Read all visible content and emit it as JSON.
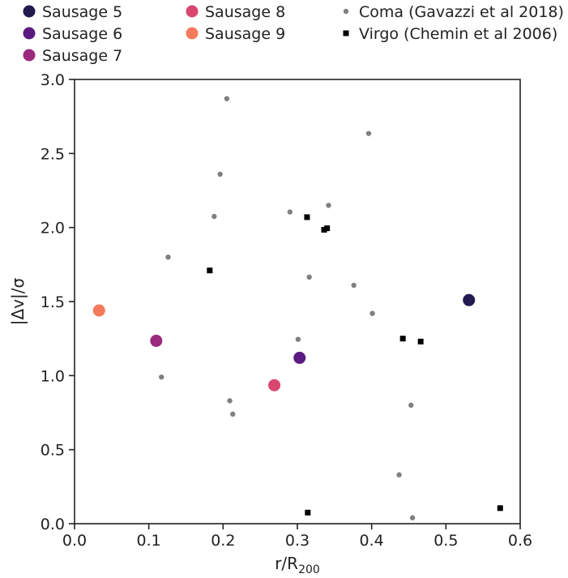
{
  "chart_data": {
    "type": "scatter",
    "xlabel": "r/R",
    "xlabel_sub": "200",
    "ylabel": "|Δv|/σ",
    "xlim": [
      0.0,
      0.6
    ],
    "ylim": [
      0.0,
      3.0
    ],
    "xticks": [
      "0.0",
      "0.1",
      "0.2",
      "0.3",
      "0.4",
      "0.5",
      "0.6"
    ],
    "yticks": [
      "0.0",
      "0.5",
      "1.0",
      "1.5",
      "2.0",
      "2.5",
      "3.0"
    ],
    "grid": false,
    "legend_position": "top",
    "series": [
      {
        "name": "Sausage 5",
        "color": "#231a4f",
        "marker": "large-circle",
        "points": [
          {
            "x": 0.531,
            "y": 1.51
          }
        ]
      },
      {
        "name": "Sausage 6",
        "color": "#5b1a80",
        "marker": "large-circle",
        "points": [
          {
            "x": 0.303,
            "y": 1.12
          }
        ]
      },
      {
        "name": "Sausage 7",
        "color": "#9b2a7e",
        "marker": "large-circle",
        "points": [
          {
            "x": 0.11,
            "y": 1.235
          }
        ]
      },
      {
        "name": "Sausage 8",
        "color": "#d9466f",
        "marker": "large-circle",
        "points": [
          {
            "x": 0.269,
            "y": 0.935
          }
        ]
      },
      {
        "name": "Sausage 9",
        "color": "#f5795a",
        "marker": "large-circle",
        "points": [
          {
            "x": 0.033,
            "y": 1.44
          }
        ]
      },
      {
        "name": "Coma (Gavazzi et al 2018)",
        "color": "#808080",
        "marker": "small-circle",
        "points": [
          {
            "x": 0.205,
            "y": 2.87
          },
          {
            "x": 0.396,
            "y": 2.635
          },
          {
            "x": 0.196,
            "y": 2.36
          },
          {
            "x": 0.342,
            "y": 2.15
          },
          {
            "x": 0.29,
            "y": 2.105
          },
          {
            "x": 0.188,
            "y": 2.075
          },
          {
            "x": 0.126,
            "y": 1.8
          },
          {
            "x": 0.316,
            "y": 1.665
          },
          {
            "x": 0.376,
            "y": 1.61
          },
          {
            "x": 0.401,
            "y": 1.42
          },
          {
            "x": 0.301,
            "y": 1.245
          },
          {
            "x": 0.117,
            "y": 0.99
          },
          {
            "x": 0.209,
            "y": 0.83
          },
          {
            "x": 0.213,
            "y": 0.74
          },
          {
            "x": 0.453,
            "y": 0.8
          },
          {
            "x": 0.437,
            "y": 0.33
          },
          {
            "x": 0.455,
            "y": 0.04
          }
        ]
      },
      {
        "name": "Virgo (Chemin et al 2006)",
        "color": "#000000",
        "marker": "square",
        "points": [
          {
            "x": 0.313,
            "y": 2.07
          },
          {
            "x": 0.336,
            "y": 1.985
          },
          {
            "x": 0.34,
            "y": 1.995
          },
          {
            "x": 0.182,
            "y": 1.71
          },
          {
            "x": 0.442,
            "y": 1.25
          },
          {
            "x": 0.466,
            "y": 1.23
          },
          {
            "x": 0.314,
            "y": 0.075
          },
          {
            "x": 0.573,
            "y": 0.105
          }
        ]
      }
    ]
  }
}
